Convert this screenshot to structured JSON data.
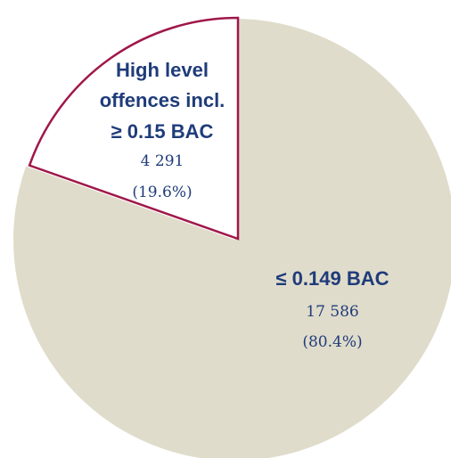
{
  "chart_data": {
    "type": "pie",
    "slices": [
      {
        "label_lines": [
          "High level",
          "offences incl.",
          "≥ 0.15 BAC"
        ],
        "value": 4291,
        "value_text": "4 291",
        "percent_text": "(19.6%)",
        "fill": "#ffffff",
        "stroke": "#a0174a",
        "exploded": true
      },
      {
        "label_lines": [
          "≤ 0.149 BAC"
        ],
        "value": 17586,
        "value_text": "17 586",
        "percent_text": "(80.4%)",
        "fill": "#e0dccb",
        "stroke": "none",
        "exploded": false
      }
    ],
    "colors": {
      "label": "#1f3c7a"
    }
  }
}
